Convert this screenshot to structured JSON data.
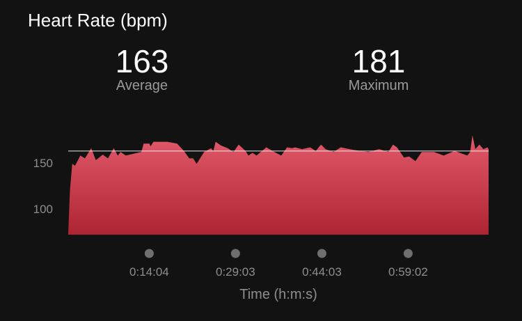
{
  "title": "Heart Rate (bpm)",
  "stats": [
    {
      "value": "163",
      "label": "Average"
    },
    {
      "value": "181",
      "label": "Maximum"
    }
  ],
  "colors": {
    "fill_top": "#e25a6b",
    "fill_bottom": "#ad2532",
    "average_line": "#e8e8e8",
    "tick": "#8e8e8e"
  },
  "chart_data": {
    "type": "area",
    "title": "Heart Rate (bpm)",
    "xlabel": "Time (h:m:s)",
    "ylabel": "",
    "x_unit": "minutes",
    "xlim": [
      0,
      73
    ],
    "ylim": [
      72,
      185
    ],
    "y_ticks": [
      100,
      150
    ],
    "x_ticks": [
      {
        "value": 14.07,
        "label": "0:14:04"
      },
      {
        "value": 29.05,
        "label": "0:29:03"
      },
      {
        "value": 44.05,
        "label": "0:44:03"
      },
      {
        "value": 59.03,
        "label": "0:59:02"
      }
    ],
    "average_line": 163,
    "grid": false,
    "x": [
      0,
      0.3,
      0.7,
      1.2,
      2.1,
      2.9,
      4.0,
      4.8,
      6.0,
      6.9,
      7.9,
      8.6,
      9.1,
      10.0,
      12.0,
      12.7,
      13.1,
      14.1,
      14.3,
      14.8,
      17.2,
      18.1,
      18.9,
      20.1,
      21.0,
      21.7,
      22.3,
      23.6,
      24.8,
      25.2,
      25.6,
      26.5,
      27.7,
      28.7,
      29.6,
      30.8,
      31.3,
      32.0,
      32.7,
      34.4,
      35.8,
      37.0,
      38.0,
      38.9,
      39.4,
      40.6,
      42.0,
      43.0,
      43.9,
      44.7,
      46.1,
      47.3,
      49.7,
      52.1,
      54.0,
      55.6,
      56.4,
      57.1,
      58.3,
      59.2,
      60.3,
      61.4,
      63.5,
      65.2,
      67.1,
      69.3,
      69.8,
      70.2,
      70.7,
      71.4,
      72.1,
      72.8,
      73.0
    ],
    "y": [
      72,
      120,
      149,
      147,
      158,
      155,
      166,
      153,
      159,
      155,
      166,
      158,
      162,
      158,
      161,
      162,
      171,
      171,
      168,
      173,
      173,
      172,
      171,
      163,
      155,
      155,
      149,
      162,
      166,
      163,
      173,
      169,
      166,
      162,
      170,
      163,
      158,
      161,
      158,
      167,
      162,
      158,
      167,
      166,
      167,
      165,
      167,
      163,
      170,
      165,
      162,
      167,
      164,
      162,
      165,
      162,
      170,
      167,
      156,
      157,
      152,
      162,
      162,
      158,
      163,
      158,
      162,
      180,
      165,
      170,
      165,
      167,
      165
    ]
  }
}
